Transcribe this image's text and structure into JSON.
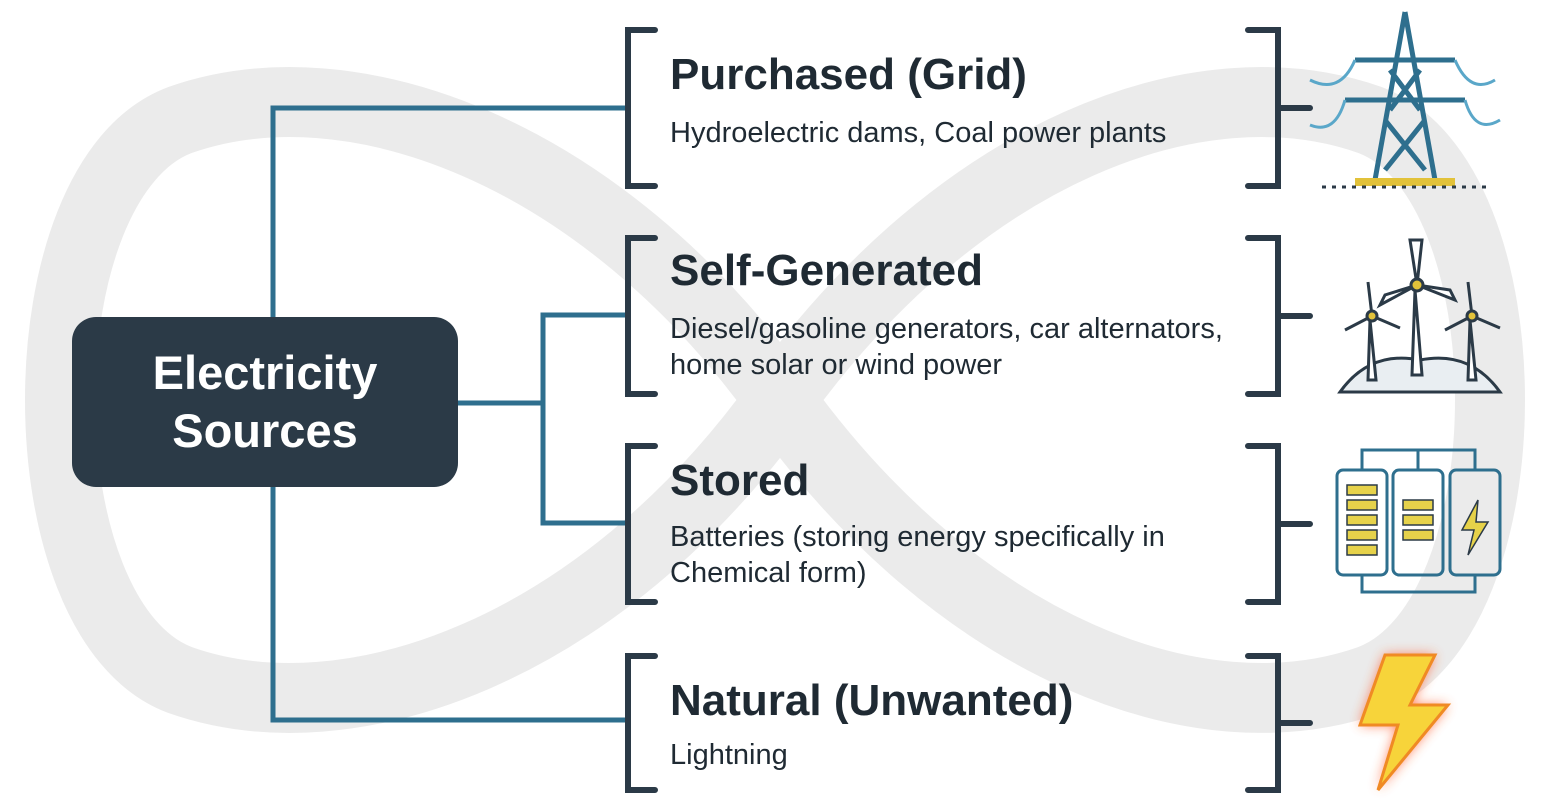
{
  "root": {
    "label": "Electricity Sources"
  },
  "categories": [
    {
      "title": "Purchased (Grid)",
      "description": "Hydroelectric dams, Coal power plants"
    },
    {
      "title": "Self-Generated",
      "description": "Diesel/gasoline generators, car alternators, home solar or wind power"
    },
    {
      "title": "Stored",
      "description": "Batteries (storing energy specifically in Chemical form)"
    },
    {
      "title": "Natural (Unwanted)",
      "description": "Lightning"
    }
  ]
}
